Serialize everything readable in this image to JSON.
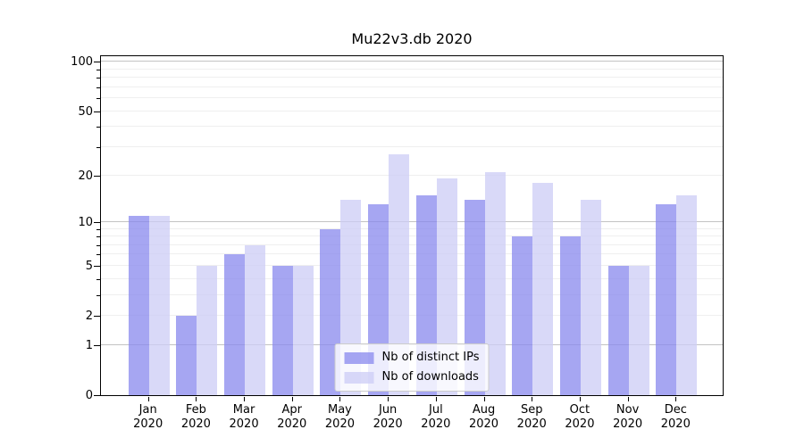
{
  "title": "Mu22v3.db 2020",
  "chart_data": {
    "type": "bar",
    "title": "Mu22v3.db 2020",
    "y_scale": "log10(1+v)",
    "categories": [
      "Jan",
      "Feb",
      "Mar",
      "Apr",
      "May",
      "Jun",
      "Jul",
      "Aug",
      "Sep",
      "Oct",
      "Nov",
      "Dec"
    ],
    "category_year": "2020",
    "series": [
      {
        "name": "Nb of distinct IPs",
        "color": "#8888ee",
        "values": [
          11,
          2,
          6,
          5,
          9,
          13,
          15,
          14,
          8,
          8,
          5,
          13
        ]
      },
      {
        "name": "Nb of downloads",
        "color": "#ccccf6",
        "values": [
          11,
          5,
          7,
          5,
          14,
          27,
          19,
          21,
          18,
          14,
          5,
          15
        ]
      }
    ],
    "bar_opacity": 0.75,
    "y_ticks": [
      0,
      1,
      2,
      5,
      10,
      20,
      50,
      100
    ],
    "y_major_gridlines": [
      1,
      10,
      100
    ],
    "y_minor_gridlines": [
      2,
      3,
      4,
      5,
      6,
      7,
      8,
      9,
      20,
      30,
      40,
      50,
      60,
      70,
      80,
      90
    ],
    "ylim": [
      0,
      111
    ],
    "grid": true,
    "legend_position": "lower center",
    "axis_color": "#000000",
    "minor_grid_color": "#efefef",
    "major_grid_color": "#c3c3c3"
  }
}
